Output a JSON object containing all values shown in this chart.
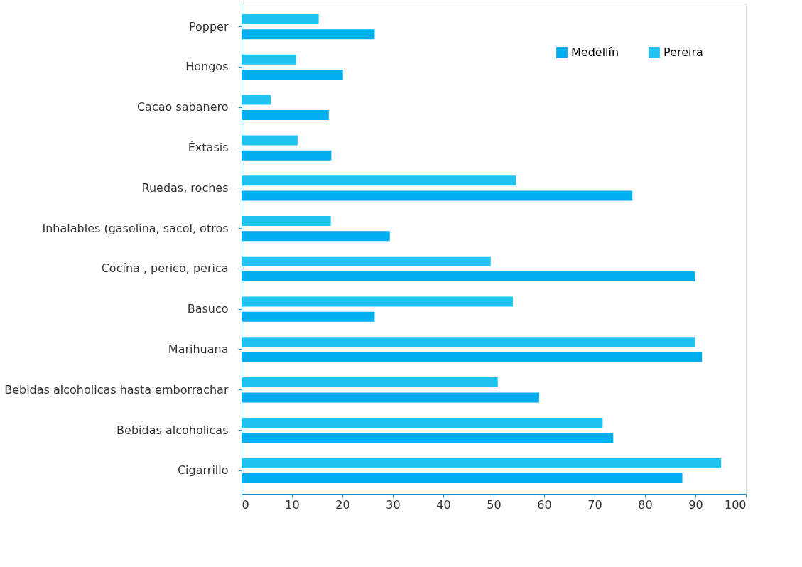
{
  "chart_data": {
    "type": "bar",
    "orientation": "horizontal",
    "categories": [
      "Popper",
      "Hongos",
      "Cacao sabanero",
      "Éxtasis",
      "Ruedas, roches",
      "Inhalables (gasolina, sacol, otros",
      "Cocína , perico, perica",
      "Basuco",
      "Marihuana",
      "Bebidas alcoholicas hasta emborrachar",
      "Bebidas alcoholicas",
      "Cigarrillo"
    ],
    "series": [
      {
        "name": "Medellín",
        "color": "#00aeef",
        "values": [
          26.4,
          20.1,
          17.3,
          17.8,
          77.5,
          29.4,
          89.9,
          26.4,
          91.3,
          59.0,
          73.7,
          87.4
        ]
      },
      {
        "name": "Pereira",
        "color": "#1ec3f0",
        "values": [
          15.3,
          10.8,
          5.8,
          11.1,
          54.4,
          17.7,
          49.4,
          53.8,
          89.9,
          50.8,
          71.6,
          95.1
        ]
      }
    ],
    "xlim": [
      0,
      100
    ],
    "xticks": [
      0,
      10,
      20,
      30,
      40,
      50,
      60,
      70,
      80,
      90,
      100
    ],
    "grid": false,
    "legend": "top right"
  }
}
